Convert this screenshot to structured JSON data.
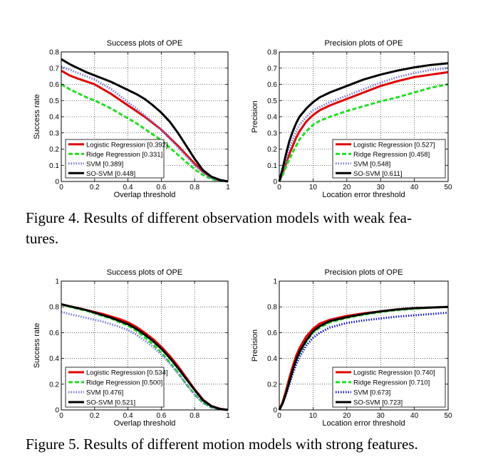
{
  "figures": [
    {
      "caption": "Figure 4.  Results of different observation models with weak features.",
      "caption_lines": [
        "Figure 4.  Results of different observation models with weak fea-",
        "tures."
      ]
    },
    {
      "caption": "Figure 5.  Results of different motion models with strong features.",
      "caption_lines": [
        "Figure 5.  Results of different motion models with strong features."
      ]
    }
  ],
  "style": {
    "colors": {
      "logistic": "#e00000",
      "ridge": "#22dd22",
      "svm": "#7777dd",
      "svm_dark": "#1010cc",
      "sosvm": "#000000"
    }
  },
  "chart_data": [
    {
      "type": "line",
      "title": "Success plots of OPE",
      "xlabel": "Overlap threshold",
      "ylabel": "Success rate",
      "xlim": [
        0,
        1
      ],
      "ylim": [
        0,
        0.8
      ],
      "xticks": [
        0,
        0.2,
        0.4,
        0.6,
        0.8,
        1
      ],
      "xtick_labels": [
        "0",
        "0.2",
        "0.4",
        "0.6",
        "0.8",
        "1"
      ],
      "yticks": [
        0,
        0.1,
        0.2,
        0.3,
        0.4,
        0.5,
        0.6,
        0.7,
        0.8
      ],
      "ytick_labels": [
        "0",
        "0.1",
        "0.2",
        "0.3",
        "0.4",
        "0.5",
        "0.6",
        "0.7",
        "0.8"
      ],
      "grid": true,
      "legend_position": "bottom-left",
      "x": [
        0,
        0.05,
        0.1,
        0.15,
        0.2,
        0.25,
        0.3,
        0.35,
        0.4,
        0.45,
        0.5,
        0.55,
        0.6,
        0.65,
        0.7,
        0.75,
        0.8,
        0.85,
        0.9,
        0.95,
        1.0
      ],
      "series": [
        {
          "name": "Logistic Regression [0.392]",
          "color_key": "logistic",
          "style": "solid",
          "values": [
            0.685,
            0.655,
            0.635,
            0.618,
            0.6,
            0.57,
            0.54,
            0.505,
            0.47,
            0.435,
            0.4,
            0.36,
            0.32,
            0.27,
            0.22,
            0.165,
            0.11,
            0.06,
            0.025,
            0.007,
            0
          ]
        },
        {
          "name": "Ridge Regression [0.331]",
          "color_key": "ridge",
          "style": "dashed",
          "values": [
            0.6,
            0.57,
            0.545,
            0.52,
            0.5,
            0.475,
            0.45,
            0.42,
            0.39,
            0.36,
            0.325,
            0.29,
            0.255,
            0.21,
            0.165,
            0.12,
            0.075,
            0.04,
            0.015,
            0.004,
            0
          ]
        },
        {
          "name": "SVM [0.389]",
          "color_key": "svm",
          "style": "dotted",
          "values": [
            0.71,
            0.69,
            0.67,
            0.65,
            0.63,
            0.6,
            0.57,
            0.53,
            0.49,
            0.45,
            0.41,
            0.365,
            0.32,
            0.265,
            0.21,
            0.155,
            0.1,
            0.055,
            0.02,
            0.006,
            0
          ]
        },
        {
          "name": "SO-SVM [0.448]",
          "color_key": "sosvm",
          "style": "solid",
          "values": [
            0.755,
            0.725,
            0.7,
            0.675,
            0.655,
            0.635,
            0.615,
            0.59,
            0.565,
            0.54,
            0.51,
            0.47,
            0.425,
            0.37,
            0.3,
            0.22,
            0.14,
            0.07,
            0.03,
            0.01,
            0
          ]
        }
      ]
    },
    {
      "type": "line",
      "title": "Precision plots of OPE",
      "xlabel": "Location error threshold",
      "ylabel": "Precision",
      "xlim": [
        0,
        50
      ],
      "ylim": [
        0,
        0.8
      ],
      "xticks": [
        0,
        10,
        20,
        30,
        40,
        50
      ],
      "xtick_labels": [
        "0",
        "10",
        "20",
        "30",
        "40",
        "50"
      ],
      "yticks": [
        0,
        0.1,
        0.2,
        0.3,
        0.4,
        0.5,
        0.6,
        0.7,
        0.8
      ],
      "ytick_labels": [
        "0",
        "0.1",
        "0.2",
        "0.3",
        "0.4",
        "0.5",
        "0.6",
        "0.7",
        "0.8"
      ],
      "grid": true,
      "legend_position": "bottom-right",
      "x": [
        0,
        1,
        2,
        3,
        4,
        5,
        6,
        8,
        10,
        12,
        15,
        20,
        25,
        30,
        35,
        40,
        45,
        50
      ],
      "series": [
        {
          "name": "Logistic Regression [0.527]",
          "color_key": "logistic",
          "style": "solid",
          "values": [
            0,
            0.05,
            0.11,
            0.17,
            0.22,
            0.27,
            0.31,
            0.37,
            0.41,
            0.44,
            0.47,
            0.51,
            0.55,
            0.59,
            0.62,
            0.645,
            0.66,
            0.675
          ]
        },
        {
          "name": "Ridge Regression [0.458]",
          "color_key": "ridge",
          "style": "dashed",
          "values": [
            0,
            0.04,
            0.09,
            0.14,
            0.18,
            0.22,
            0.26,
            0.31,
            0.35,
            0.375,
            0.4,
            0.435,
            0.465,
            0.495,
            0.52,
            0.55,
            0.58,
            0.6
          ]
        },
        {
          "name": "SVM [0.548]",
          "color_key": "svm",
          "style": "dotted",
          "values": [
            0,
            0.06,
            0.13,
            0.2,
            0.26,
            0.31,
            0.35,
            0.4,
            0.44,
            0.46,
            0.49,
            0.53,
            0.57,
            0.61,
            0.645,
            0.67,
            0.69,
            0.7
          ]
        },
        {
          "name": "SO-SVM [0.611]",
          "color_key": "sosvm",
          "style": "solid",
          "values": [
            0,
            0.08,
            0.17,
            0.25,
            0.31,
            0.36,
            0.4,
            0.45,
            0.49,
            0.52,
            0.55,
            0.59,
            0.63,
            0.66,
            0.685,
            0.705,
            0.72,
            0.73
          ]
        }
      ]
    },
    {
      "type": "line",
      "title": "Success plots of OPE",
      "xlabel": "Overlap threshold",
      "ylabel": "Success rate",
      "xlim": [
        0,
        1
      ],
      "ylim": [
        0,
        1
      ],
      "xticks": [
        0,
        0.2,
        0.4,
        0.6,
        0.8,
        1
      ],
      "xtick_labels": [
        "0",
        "0.2",
        "0.4",
        "0.6",
        "0.8",
        "1"
      ],
      "yticks": [
        0,
        0.2,
        0.4,
        0.6,
        0.8,
        1
      ],
      "ytick_labels": [
        "0",
        "0.2",
        "0.4",
        "0.6",
        "0.8",
        "1"
      ],
      "grid": true,
      "legend_position": "bottom-left",
      "x": [
        0,
        0.05,
        0.1,
        0.15,
        0.2,
        0.25,
        0.3,
        0.35,
        0.4,
        0.45,
        0.5,
        0.55,
        0.6,
        0.65,
        0.7,
        0.75,
        0.8,
        0.85,
        0.9,
        0.95,
        1.0
      ],
      "series": [
        {
          "name": "Logistic Regression [0.534]",
          "color_key": "logistic",
          "style": "solid",
          "values": [
            0.82,
            0.805,
            0.79,
            0.775,
            0.76,
            0.745,
            0.725,
            0.705,
            0.68,
            0.645,
            0.6,
            0.55,
            0.49,
            0.42,
            0.34,
            0.25,
            0.16,
            0.08,
            0.03,
            0.01,
            0
          ]
        },
        {
          "name": "Ridge Regression [0.500]",
          "color_key": "ridge",
          "style": "dashed",
          "values": [
            0.82,
            0.8,
            0.785,
            0.77,
            0.75,
            0.73,
            0.71,
            0.68,
            0.655,
            0.615,
            0.565,
            0.51,
            0.445,
            0.37,
            0.29,
            0.2,
            0.12,
            0.055,
            0.02,
            0.005,
            0
          ]
        },
        {
          "name": "SVM [0.476]",
          "color_key": "svm",
          "style": "dotted",
          "values": [
            0.76,
            0.745,
            0.73,
            0.715,
            0.7,
            0.685,
            0.665,
            0.645,
            0.62,
            0.585,
            0.54,
            0.49,
            0.43,
            0.36,
            0.285,
            0.2,
            0.12,
            0.055,
            0.02,
            0.005,
            0
          ]
        },
        {
          "name": "SO-SVM [0.521]",
          "color_key": "sosvm",
          "style": "solid",
          "values": [
            0.82,
            0.805,
            0.79,
            0.775,
            0.755,
            0.735,
            0.715,
            0.69,
            0.665,
            0.63,
            0.585,
            0.535,
            0.475,
            0.405,
            0.325,
            0.24,
            0.155,
            0.075,
            0.03,
            0.008,
            0
          ]
        }
      ]
    },
    {
      "type": "line",
      "title": "Precision plots of OPE",
      "xlabel": "Location error threshold",
      "ylabel": "Precision",
      "xlim": [
        0,
        50
      ],
      "ylim": [
        0,
        1
      ],
      "xticks": [
        0,
        10,
        20,
        30,
        40,
        50
      ],
      "xtick_labels": [
        "0",
        "10",
        "20",
        "30",
        "40",
        "50"
      ],
      "yticks": [
        0,
        0.2,
        0.4,
        0.6,
        0.8,
        1
      ],
      "ytick_labels": [
        "0",
        "0.2",
        "0.4",
        "0.6",
        "0.8",
        "1"
      ],
      "grid": true,
      "legend_position": "bottom-right",
      "x": [
        0,
        1,
        2,
        3,
        4,
        5,
        6,
        8,
        10,
        12,
        15,
        20,
        25,
        30,
        35,
        40,
        45,
        50
      ],
      "series": [
        {
          "name": "Logistic Regression [0.740]",
          "color_key": "logistic",
          "style": "solid",
          "values": [
            0,
            0.06,
            0.15,
            0.25,
            0.34,
            0.42,
            0.48,
            0.57,
            0.63,
            0.67,
            0.7,
            0.73,
            0.75,
            0.765,
            0.78,
            0.79,
            0.795,
            0.8
          ]
        },
        {
          "name": "Ridge Regression [0.710]",
          "color_key": "ridge",
          "style": "dashed",
          "values": [
            0,
            0.05,
            0.13,
            0.22,
            0.31,
            0.38,
            0.44,
            0.53,
            0.6,
            0.64,
            0.68,
            0.715,
            0.74,
            0.76,
            0.775,
            0.785,
            0.795,
            0.8
          ]
        },
        {
          "name": "SVM [0.673]",
          "color_key": "svm_dark",
          "style": "dotted",
          "values": [
            0,
            0.05,
            0.12,
            0.2,
            0.28,
            0.35,
            0.41,
            0.5,
            0.56,
            0.6,
            0.64,
            0.675,
            0.695,
            0.71,
            0.725,
            0.735,
            0.745,
            0.755
          ]
        },
        {
          "name": "SO-SVM [0.723]",
          "color_key": "sosvm",
          "style": "solid",
          "values": [
            0,
            0.05,
            0.13,
            0.22,
            0.31,
            0.39,
            0.45,
            0.54,
            0.61,
            0.65,
            0.69,
            0.72,
            0.745,
            0.765,
            0.78,
            0.79,
            0.795,
            0.8
          ]
        }
      ]
    }
  ]
}
